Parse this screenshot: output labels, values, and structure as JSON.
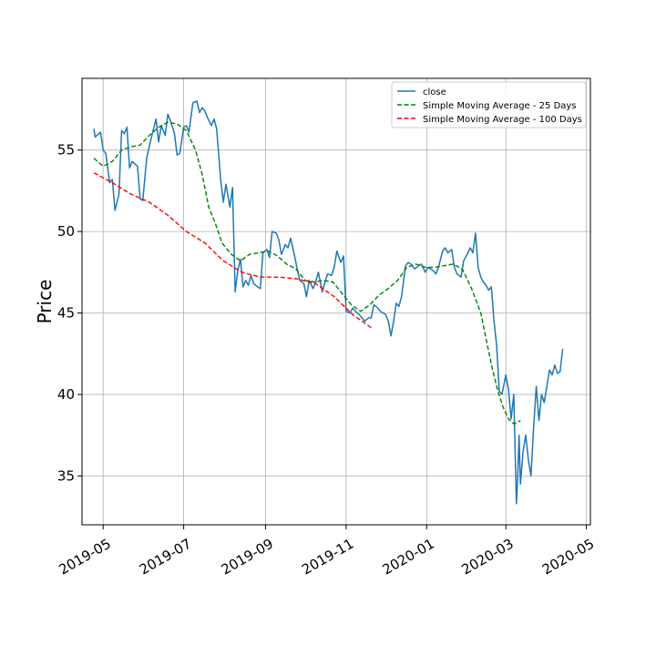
{
  "chart_data": {
    "type": "line",
    "title": "",
    "xlabel": "",
    "ylabel": "Price",
    "grid": true,
    "legend_position": "top-right",
    "xlim": [
      "2019-04-15",
      "2020-05-04"
    ],
    "ylim": [
      32.0,
      59.4
    ],
    "xticks": [
      {
        "date": "2019-05-01",
        "label": "2019-05"
      },
      {
        "date": "2019-07-01",
        "label": "2019-07"
      },
      {
        "date": "2019-09-01",
        "label": "2019-09"
      },
      {
        "date": "2019-11-01",
        "label": "2019-11"
      },
      {
        "date": "2020-01-01",
        "label": "2020-01"
      },
      {
        "date": "2020-03-01",
        "label": "2020-03"
      },
      {
        "date": "2020-05-01",
        "label": "2020-05"
      }
    ],
    "yticks": [
      {
        "value": 35,
        "label": "35"
      },
      {
        "value": 40,
        "label": "40"
      },
      {
        "value": 45,
        "label": "45"
      },
      {
        "value": 50,
        "label": "50"
      },
      {
        "value": 55,
        "label": "55"
      }
    ],
    "series": [
      {
        "name": "close",
        "color": "#1f77b4",
        "style": "solid",
        "points": [
          [
            "2019-04-24",
            56.3
          ],
          [
            "2019-04-25",
            55.8
          ],
          [
            "2019-04-29",
            56.1
          ],
          [
            "2019-05-01",
            55.0
          ],
          [
            "2019-05-03",
            54.8
          ],
          [
            "2019-05-06",
            53.0
          ],
          [
            "2019-05-08",
            53.2
          ],
          [
            "2019-05-10",
            51.3
          ],
          [
            "2019-05-13",
            52.3
          ],
          [
            "2019-05-15",
            56.2
          ],
          [
            "2019-05-17",
            56.0
          ],
          [
            "2019-05-19",
            56.4
          ],
          [
            "2019-05-21",
            53.9
          ],
          [
            "2019-05-23",
            54.3
          ],
          [
            "2019-05-27",
            54.0
          ],
          [
            "2019-05-29",
            52.0
          ],
          [
            "2019-05-31",
            51.9
          ],
          [
            "2019-06-03",
            54.5
          ],
          [
            "2019-06-06",
            55.6
          ],
          [
            "2019-06-10",
            56.9
          ],
          [
            "2019-06-12",
            55.5
          ],
          [
            "2019-06-14",
            56.5
          ],
          [
            "2019-06-17",
            55.9
          ],
          [
            "2019-06-19",
            57.2
          ],
          [
            "2019-06-21",
            56.8
          ],
          [
            "2019-06-24",
            56.0
          ],
          [
            "2019-06-26",
            54.7
          ],
          [
            "2019-06-28",
            54.8
          ],
          [
            "2019-07-01",
            56.4
          ],
          [
            "2019-07-03",
            56.5
          ],
          [
            "2019-07-05",
            56.1
          ],
          [
            "2019-07-08",
            57.9
          ],
          [
            "2019-07-11",
            58.0
          ],
          [
            "2019-07-13",
            57.3
          ],
          [
            "2019-07-15",
            57.6
          ],
          [
            "2019-07-17",
            57.4
          ],
          [
            "2019-07-19",
            57.0
          ],
          [
            "2019-07-22",
            56.5
          ],
          [
            "2019-07-24",
            56.9
          ],
          [
            "2019-07-26",
            56.3
          ],
          [
            "2019-07-29",
            53.2
          ],
          [
            "2019-07-31",
            51.8
          ],
          [
            "2019-08-02",
            52.9
          ],
          [
            "2019-08-05",
            51.5
          ],
          [
            "2019-08-07",
            52.7
          ],
          [
            "2019-08-09",
            46.3
          ],
          [
            "2019-08-11",
            47.6
          ],
          [
            "2019-08-13",
            48.3
          ],
          [
            "2019-08-15",
            46.6
          ],
          [
            "2019-08-17",
            47.0
          ],
          [
            "2019-08-19",
            46.7
          ],
          [
            "2019-08-21",
            47.3
          ],
          [
            "2019-08-23",
            46.8
          ],
          [
            "2019-08-26",
            46.6
          ],
          [
            "2019-08-28",
            46.5
          ],
          [
            "2019-08-30",
            48.7
          ],
          [
            "2019-09-02",
            48.9
          ],
          [
            "2019-09-04",
            48.4
          ],
          [
            "2019-09-06",
            50.0
          ],
          [
            "2019-09-09",
            49.9
          ],
          [
            "2019-09-11",
            49.5
          ],
          [
            "2019-09-13",
            48.6
          ],
          [
            "2019-09-16",
            49.2
          ],
          [
            "2019-09-18",
            49.0
          ],
          [
            "2019-09-20",
            49.6
          ],
          [
            "2019-09-23",
            48.5
          ],
          [
            "2019-09-25",
            47.7
          ],
          [
            "2019-09-27",
            47.0
          ],
          [
            "2019-09-30",
            46.8
          ],
          [
            "2019-10-02",
            46.0
          ],
          [
            "2019-10-04",
            47.0
          ],
          [
            "2019-10-07",
            46.5
          ],
          [
            "2019-10-09",
            46.9
          ],
          [
            "2019-10-11",
            47.5
          ],
          [
            "2019-10-14",
            46.3
          ],
          [
            "2019-10-16",
            46.9
          ],
          [
            "2019-10-18",
            47.4
          ],
          [
            "2019-10-21",
            47.3
          ],
          [
            "2019-10-23",
            47.8
          ],
          [
            "2019-10-25",
            48.8
          ],
          [
            "2019-10-28",
            48.1
          ],
          [
            "2019-10-30",
            48.5
          ],
          [
            "2019-11-01",
            45.1
          ],
          [
            "2019-11-04",
            45.0
          ],
          [
            "2019-11-06",
            45.3
          ],
          [
            "2019-11-08",
            45.1
          ],
          [
            "2019-11-11",
            44.9
          ],
          [
            "2019-11-13",
            44.7
          ],
          [
            "2019-11-15",
            44.5
          ],
          [
            "2019-11-18",
            44.7
          ],
          [
            "2019-11-20",
            44.7
          ],
          [
            "2019-11-22",
            45.5
          ],
          [
            "2019-11-25",
            45.3
          ],
          [
            "2019-11-27",
            45.1
          ],
          [
            "2019-12-01",
            44.9
          ],
          [
            "2019-12-03",
            44.5
          ],
          [
            "2019-12-05",
            43.6
          ],
          [
            "2019-12-07",
            44.5
          ],
          [
            "2019-12-09",
            45.6
          ],
          [
            "2019-12-11",
            45.4
          ],
          [
            "2019-12-13",
            46.0
          ],
          [
            "2019-12-16",
            47.9
          ],
          [
            "2019-12-18",
            48.1
          ],
          [
            "2019-12-20",
            48.0
          ],
          [
            "2019-12-23",
            47.7
          ],
          [
            "2019-12-26",
            47.9
          ],
          [
            "2019-12-28",
            48.0
          ],
          [
            "2019-12-31",
            47.5
          ],
          [
            "2020-01-02",
            47.8
          ],
          [
            "2020-01-06",
            47.6
          ],
          [
            "2020-01-08",
            47.4
          ],
          [
            "2020-01-10",
            47.8
          ],
          [
            "2020-01-13",
            48.8
          ],
          [
            "2020-01-15",
            49.0
          ],
          [
            "2020-01-17",
            48.7
          ],
          [
            "2020-01-20",
            48.9
          ],
          [
            "2020-01-22",
            47.8
          ],
          [
            "2020-01-24",
            47.4
          ],
          [
            "2020-01-27",
            47.2
          ],
          [
            "2020-01-29",
            48.2
          ],
          [
            "2020-01-31",
            48.5
          ],
          [
            "2020-02-03",
            49.0
          ],
          [
            "2020-02-05",
            48.7
          ],
          [
            "2020-02-07",
            49.9
          ],
          [
            "2020-02-09",
            47.8
          ],
          [
            "2020-02-11",
            47.2
          ],
          [
            "2020-02-13",
            46.9
          ],
          [
            "2020-02-15",
            46.7
          ],
          [
            "2020-02-17",
            46.4
          ],
          [
            "2020-02-19",
            46.6
          ],
          [
            "2020-02-21",
            44.5
          ],
          [
            "2020-02-23",
            43.0
          ],
          [
            "2020-02-25",
            40.2
          ],
          [
            "2020-02-27",
            40.0
          ],
          [
            "2020-03-01",
            41.2
          ],
          [
            "2020-03-03",
            40.3
          ],
          [
            "2020-03-05",
            38.5
          ],
          [
            "2020-03-07",
            40.0
          ],
          [
            "2020-03-09",
            33.3
          ],
          [
            "2020-03-10",
            35.0
          ],
          [
            "2020-03-11",
            37.5
          ],
          [
            "2020-03-12",
            34.5
          ],
          [
            "2020-03-14",
            36.5
          ],
          [
            "2020-03-16",
            37.5
          ],
          [
            "2020-03-18",
            36.0
          ],
          [
            "2020-03-20",
            35.0
          ],
          [
            "2020-03-22",
            38.0
          ],
          [
            "2020-03-24",
            40.5
          ],
          [
            "2020-03-26",
            38.4
          ],
          [
            "2020-03-28",
            40.0
          ],
          [
            "2020-03-30",
            39.5
          ],
          [
            "2020-04-01",
            40.5
          ],
          [
            "2020-04-03",
            41.5
          ],
          [
            "2020-04-05",
            41.2
          ],
          [
            "2020-04-07",
            41.8
          ],
          [
            "2020-04-09",
            41.3
          ],
          [
            "2020-04-11",
            41.4
          ],
          [
            "2020-04-13",
            42.8
          ]
        ]
      },
      {
        "name": "Simple Moving Average - 25 Days",
        "color": "#008000",
        "style": "dashed",
        "points": [
          [
            "2019-04-24",
            54.5
          ],
          [
            "2019-05-01",
            54.0
          ],
          [
            "2019-05-08",
            54.3
          ],
          [
            "2019-05-15",
            55.0
          ],
          [
            "2019-05-22",
            55.2
          ],
          [
            "2019-05-29",
            55.3
          ],
          [
            "2019-06-05",
            55.9
          ],
          [
            "2019-06-12",
            56.4
          ],
          [
            "2019-06-19",
            56.7
          ],
          [
            "2019-06-26",
            56.6
          ],
          [
            "2019-07-03",
            56.2
          ],
          [
            "2019-07-10",
            55.0
          ],
          [
            "2019-07-15",
            53.5
          ],
          [
            "2019-07-20",
            51.5
          ],
          [
            "2019-07-25",
            50.5
          ],
          [
            "2019-07-30",
            49.3
          ],
          [
            "2019-08-06",
            48.6
          ],
          [
            "2019-08-13",
            48.2
          ],
          [
            "2019-08-20",
            48.6
          ],
          [
            "2019-08-27",
            48.7
          ],
          [
            "2019-09-03",
            48.8
          ],
          [
            "2019-09-10",
            48.5
          ],
          [
            "2019-09-17",
            48.0
          ],
          [
            "2019-09-24",
            47.7
          ],
          [
            "2019-10-01",
            47.0
          ],
          [
            "2019-10-08",
            46.9
          ],
          [
            "2019-10-15",
            47.0
          ],
          [
            "2019-10-22",
            46.9
          ],
          [
            "2019-10-29",
            46.2
          ],
          [
            "2019-11-05",
            45.5
          ],
          [
            "2019-11-12",
            45.1
          ],
          [
            "2019-11-19",
            45.5
          ],
          [
            "2019-11-26",
            46.1
          ],
          [
            "2019-12-03",
            46.5
          ],
          [
            "2019-12-10",
            47.0
          ],
          [
            "2019-12-17",
            47.8
          ],
          [
            "2019-12-24",
            48.0
          ],
          [
            "2019-12-31",
            47.8
          ],
          [
            "2020-01-07",
            47.8
          ],
          [
            "2020-01-14",
            47.9
          ],
          [
            "2020-01-21",
            48.0
          ],
          [
            "2020-01-28",
            47.7
          ],
          [
            "2020-02-04",
            46.5
          ],
          [
            "2020-02-11",
            45.0
          ],
          [
            "2020-02-16",
            43.0
          ],
          [
            "2020-02-20",
            41.5
          ],
          [
            "2020-02-24",
            40.2
          ],
          [
            "2020-02-28",
            39.2
          ],
          [
            "2020-03-03",
            38.5
          ],
          [
            "2020-03-07",
            38.2
          ],
          [
            "2020-03-10",
            38.3
          ],
          [
            "2020-03-12",
            38.4
          ]
        ]
      },
      {
        "name": "Simple Moving Average - 100 Days",
        "color": "#ff0000",
        "style": "dashed",
        "points": [
          [
            "2019-04-24",
            53.6
          ],
          [
            "2019-05-08",
            53.0
          ],
          [
            "2019-05-22",
            52.3
          ],
          [
            "2019-06-05",
            51.8
          ],
          [
            "2019-06-19",
            51.0
          ],
          [
            "2019-07-03",
            50.0
          ],
          [
            "2019-07-17",
            49.3
          ],
          [
            "2019-07-31",
            48.2
          ],
          [
            "2019-08-14",
            47.5
          ],
          [
            "2019-08-28",
            47.2
          ],
          [
            "2019-09-11",
            47.2
          ],
          [
            "2019-09-25",
            47.1
          ],
          [
            "2019-10-09",
            46.8
          ],
          [
            "2019-10-23",
            46.0
          ],
          [
            "2019-11-06",
            44.9
          ],
          [
            "2019-11-20",
            44.1
          ]
        ]
      }
    ]
  }
}
